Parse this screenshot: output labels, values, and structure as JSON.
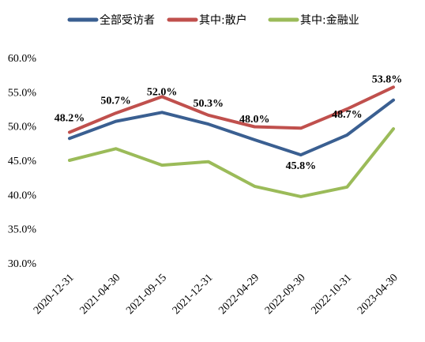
{
  "chart_data": {
    "type": "line",
    "categories": [
      "2020-12-31",
      "2021-04-30",
      "2021-09-15",
      "2021-12-31",
      "2022-04-29",
      "2022-09-30",
      "2022-10-31",
      "2023-04-30"
    ],
    "ylim": [
      30.0,
      60.0
    ],
    "yticks": [
      "30.0%",
      "35.0%",
      "40.0%",
      "45.0%",
      "50.0%",
      "55.0%",
      "60.0%"
    ],
    "grid": false,
    "legend": "top",
    "series": [
      {
        "name": "全部受访者",
        "color": "#3a5f91",
        "values": [
          48.2,
          50.7,
          52.0,
          50.3,
          48.0,
          45.8,
          48.7,
          53.8
        ]
      },
      {
        "name": "其中:散户",
        "color": "#c0504d",
        "values": [
          49.1,
          51.9,
          54.3,
          51.6,
          49.9,
          49.7,
          52.5,
          55.7
        ]
      },
      {
        "name": "其中:金融业",
        "color": "#9bbb59",
        "values": [
          45.0,
          46.7,
          44.3,
          44.8,
          41.2,
          39.7,
          41.1,
          49.6
        ]
      }
    ],
    "data_labels": [
      "48.2%",
      "50.7%",
      "52.0%",
      "50.3%",
      "48.0%",
      "45.8%",
      "48.7%",
      "53.8%"
    ]
  }
}
